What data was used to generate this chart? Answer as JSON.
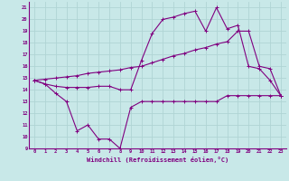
{
  "bg_color": "#c8e8e8",
  "grid_color": "#b0d4d4",
  "line_color": "#800080",
  "xlabel": "Windchill (Refroidissement éolien,°C)",
  "xlim": [
    -0.5,
    23.5
  ],
  "ylim": [
    9,
    21.5
  ],
  "yticks": [
    9,
    10,
    11,
    12,
    13,
    14,
    15,
    16,
    17,
    18,
    19,
    20,
    21
  ],
  "xticks": [
    0,
    1,
    2,
    3,
    4,
    5,
    6,
    7,
    8,
    9,
    10,
    11,
    12,
    13,
    14,
    15,
    16,
    17,
    18,
    19,
    20,
    21,
    22,
    23
  ],
  "line1_x": [
    0,
    1,
    2,
    3,
    4,
    5,
    6,
    7,
    8,
    9,
    10,
    11,
    12,
    13,
    14,
    15,
    16,
    17,
    18,
    19,
    20,
    21,
    22,
    23
  ],
  "line1_y": [
    14.8,
    14.5,
    13.7,
    13.0,
    10.5,
    11.0,
    9.8,
    9.8,
    9.0,
    12.5,
    13.0,
    13.0,
    13.0,
    13.0,
    13.0,
    13.0,
    13.0,
    13.0,
    13.5,
    13.5,
    13.5,
    13.5,
    13.5,
    13.5
  ],
  "line2_x": [
    0,
    1,
    2,
    3,
    4,
    5,
    6,
    7,
    8,
    9,
    10,
    11,
    12,
    13,
    14,
    15,
    16,
    17,
    18,
    19,
    20,
    21,
    22,
    23
  ],
  "line2_y": [
    14.8,
    14.5,
    14.3,
    14.2,
    14.2,
    14.2,
    14.3,
    14.3,
    14.0,
    14.0,
    16.5,
    18.8,
    20.0,
    20.2,
    20.5,
    20.7,
    19.0,
    21.0,
    19.2,
    19.5,
    16.0,
    15.8,
    14.8,
    13.5
  ],
  "line3_x": [
    0,
    1,
    2,
    3,
    4,
    5,
    6,
    7,
    8,
    9,
    10,
    11,
    12,
    13,
    14,
    15,
    16,
    17,
    18,
    19,
    20,
    21,
    22,
    23
  ],
  "line3_y": [
    14.8,
    14.9,
    15.0,
    15.1,
    15.2,
    15.4,
    15.5,
    15.6,
    15.7,
    15.9,
    16.0,
    16.3,
    16.6,
    16.9,
    17.1,
    17.4,
    17.6,
    17.9,
    18.1,
    19.0,
    19.0,
    16.0,
    15.8,
    13.5
  ]
}
